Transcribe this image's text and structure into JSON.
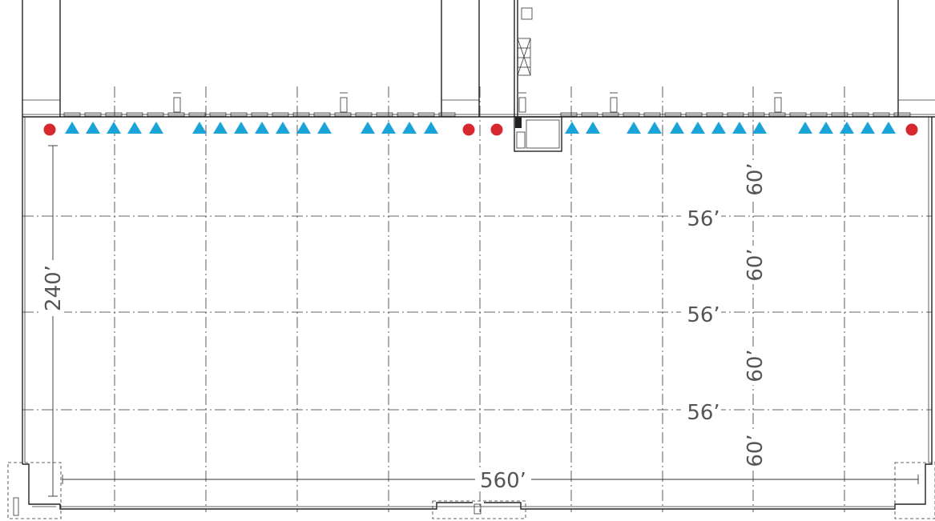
{
  "dimensions": {
    "overall_width": "560’",
    "overall_depth": "240’",
    "bay_spacing_x": "56’",
    "bay_spacing_y": "60’"
  },
  "legend_colors": {
    "dock_door": "#1aa3d9",
    "drive_in_door": "#d7282f"
  },
  "icons": {
    "dock_door": "triangle",
    "drive_in_door": "circle"
  }
}
